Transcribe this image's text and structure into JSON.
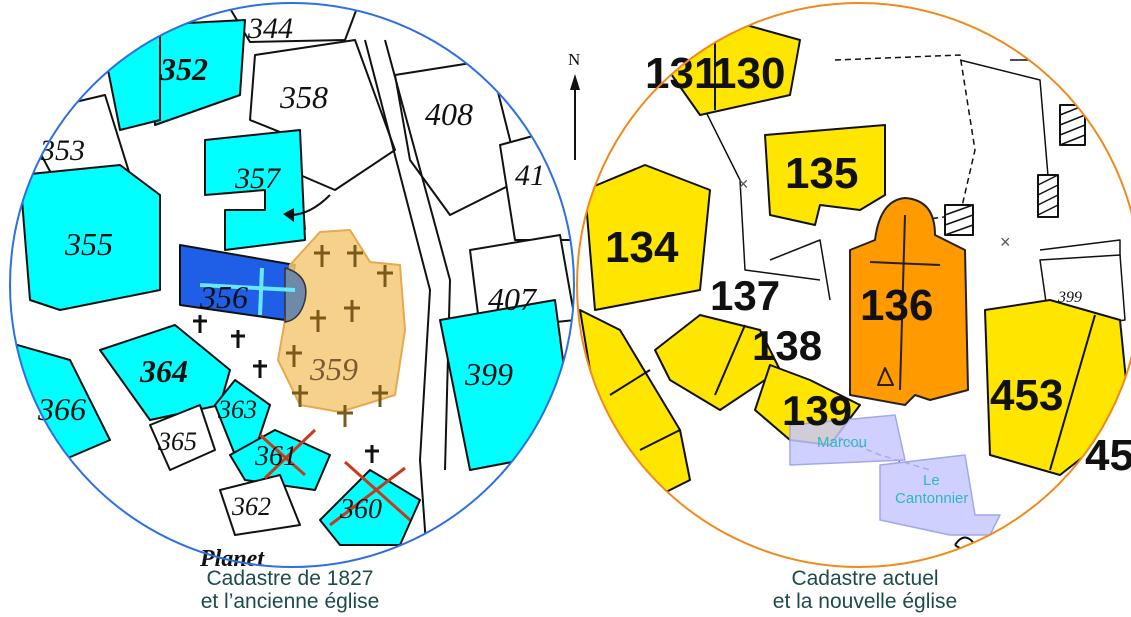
{
  "compass": {
    "letter": "N"
  },
  "left_map": {
    "caption_line1": "Cadastre de 1827",
    "caption_line2": "et l’ancienne église",
    "parcels": {
      "p344": "344",
      "p352": "352",
      "p358": "358",
      "p408": "408",
      "p353": "353",
      "p357": "357",
      "p41": "41",
      "p355": "355",
      "p356": "356",
      "p359": "359",
      "p407": "407",
      "p364": "364",
      "p399": "399",
      "p366": "366",
      "p363": "363",
      "p365": "365",
      "p361": "361",
      "p362": "362",
      "p360": "360"
    },
    "street_text": "Planet",
    "colors": {
      "parcel": "#00ffff",
      "old_church": "#1f5fe8",
      "cemetery": "#f5c977",
      "border": "#2f6fe0"
    }
  },
  "right_map": {
    "caption_line1": "Cadastre actuel",
    "caption_line2": "et la nouvelle église",
    "parcels": {
      "p131": "131",
      "p130": "130",
      "p135": "135",
      "p134": "134",
      "p137": "137",
      "p136": "136",
      "p138": "138",
      "p139": "139",
      "p453": "453",
      "p45": "45",
      "p399": "399"
    },
    "places": {
      "marcou": "Marcou",
      "cantonnier_1": "Le",
      "cantonnier_2": "Cantonnier"
    },
    "colors": {
      "parcel": "#ffe600",
      "new_church": "#ff9a00",
      "border": "#f08a1a",
      "place": "#c8c8ff"
    }
  }
}
